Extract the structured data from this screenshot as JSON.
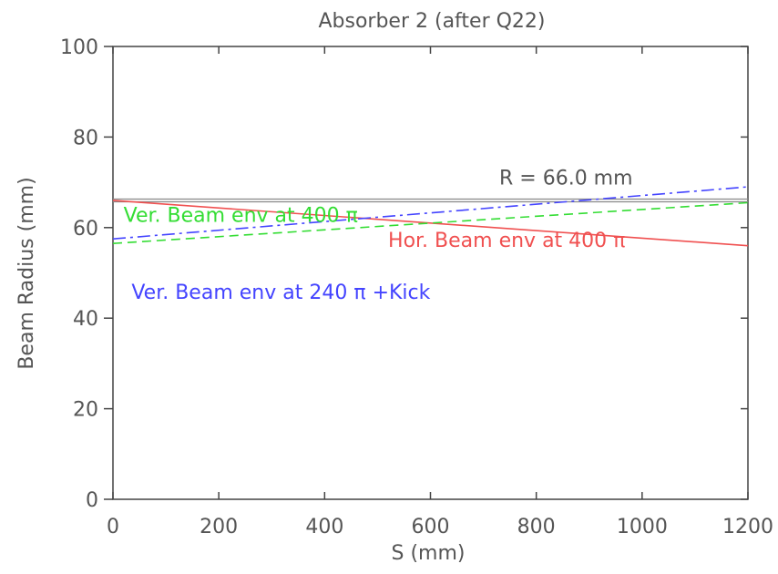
{
  "chart_data": {
    "type": "line",
    "title": "Absorber 2 (after Q22)",
    "xlabel": "S (mm)",
    "ylabel": "Beam Radius (mm)",
    "xlim": [
      0,
      1200
    ],
    "ylim": [
      0,
      100
    ],
    "x_ticks": [
      0,
      200,
      400,
      600,
      800,
      1000,
      1200
    ],
    "y_ticks": [
      0,
      20,
      40,
      60,
      80,
      100
    ],
    "grid": false,
    "series": [
      {
        "name": "R = 66.0 mm",
        "style": "solid-double",
        "color": "#888888",
        "x": [
          0,
          1200
        ],
        "y": [
          66.0,
          66.0
        ]
      },
      {
        "name": "Hor. Beam env at 400 π",
        "style": "solid",
        "color": "#f05050",
        "x": [
          0,
          1200
        ],
        "y": [
          66.0,
          56.0
        ]
      },
      {
        "name": "Ver. Beam env at 400 π",
        "style": "dashed",
        "color": "#33dd33",
        "x": [
          0,
          1200
        ],
        "y": [
          56.5,
          65.5
        ]
      },
      {
        "name": "Ver. Beam env at 240 π +Kick",
        "style": "dashdot",
        "color": "#4444ff",
        "x": [
          0,
          1200
        ],
        "y": [
          57.5,
          69.0
        ]
      }
    ],
    "annotations": [
      {
        "text": "R = 66.0 mm",
        "color": "#555555",
        "x": 730,
        "y": 69.5
      },
      {
        "text": "Ver. Beam env at 400 π",
        "color": "#33dd33",
        "x": 20,
        "y": 61.3
      },
      {
        "text": "Hor. Beam env at 400 π",
        "color": "#f05050",
        "x": 520,
        "y": 55.7
      },
      {
        "text": "Ver. Beam env at 240 π +Kick",
        "color": "#4444ff",
        "x": 35,
        "y": 44.3
      }
    ]
  }
}
